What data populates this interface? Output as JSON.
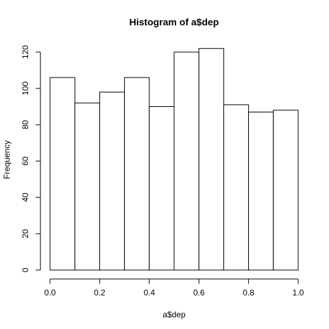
{
  "chart_data": {
    "type": "bar",
    "title": "Histogram of a$dep",
    "xlabel": "a$dep",
    "ylabel": "Frequency",
    "bins": [
      {
        "start": 0.0,
        "end": 0.1,
        "count": 106
      },
      {
        "start": 0.1,
        "end": 0.2,
        "count": 92
      },
      {
        "start": 0.2,
        "end": 0.3,
        "count": 98
      },
      {
        "start": 0.3,
        "end": 0.4,
        "count": 106
      },
      {
        "start": 0.4,
        "end": 0.5,
        "count": 90
      },
      {
        "start": 0.5,
        "end": 0.6,
        "count": 120
      },
      {
        "start": 0.6,
        "end": 0.7,
        "count": 122
      },
      {
        "start": 0.7,
        "end": 0.8,
        "count": 91
      },
      {
        "start": 0.8,
        "end": 0.9,
        "count": 87
      },
      {
        "start": 0.9,
        "end": 1.0,
        "count": 88
      }
    ],
    "xlim": [
      0,
      1
    ],
    "ylim": [
      0,
      120
    ],
    "x_ticks": [
      "0.0",
      "0.2",
      "0.4",
      "0.6",
      "0.8",
      "1.0"
    ],
    "y_ticks": [
      "0",
      "20",
      "40",
      "60",
      "80",
      "100",
      "120"
    ],
    "grid": false,
    "colors": {
      "bar_fill": "#ffffff",
      "bar_stroke": "#000000"
    }
  }
}
